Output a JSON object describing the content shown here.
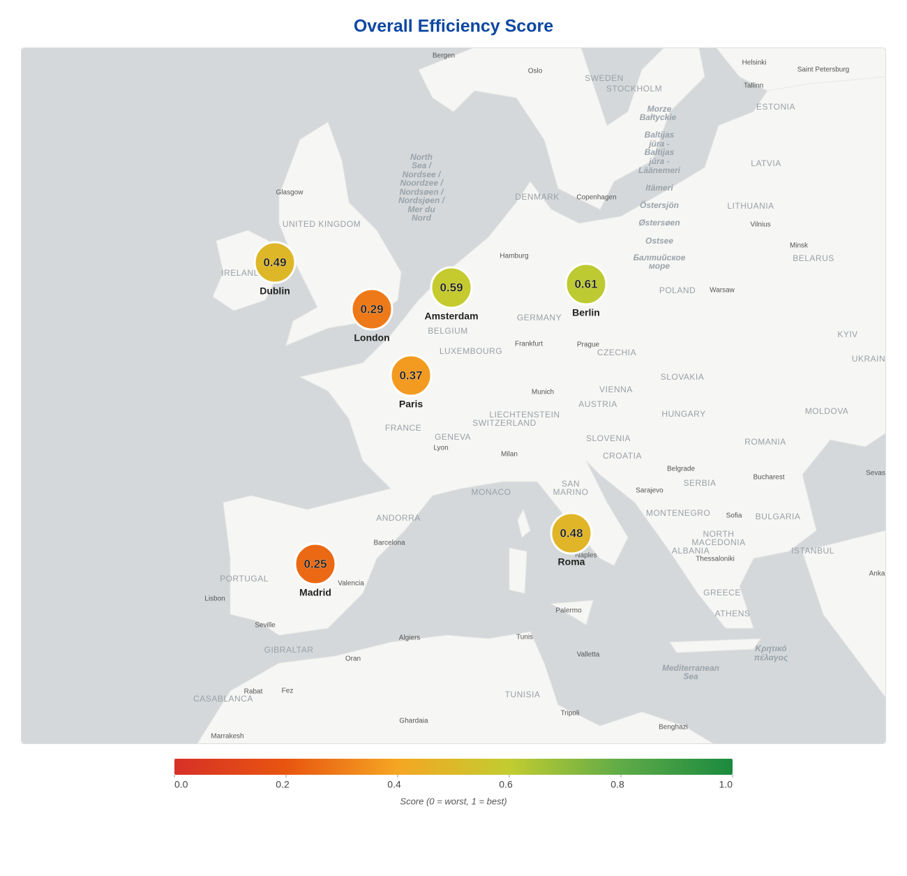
{
  "title": "Overall Efficiency Score",
  "markers": {
    "type": "bubble-map",
    "cities": [
      "Dublin",
      "London",
      "Amsterdam",
      "Berlin",
      "Paris",
      "Roma",
      "Madrid"
    ],
    "values": [
      0.49,
      0.29,
      0.59,
      0.61,
      0.37,
      0.48,
      0.25
    ]
  },
  "colorbar": {
    "colorscale": [
      "#d73027",
      "#e8550f",
      "#f5a623",
      "#c2cc30",
      "#5fab48",
      "#1a8a3e"
    ],
    "lim": [
      0,
      1
    ],
    "ticks": [
      {
        "value": 0,
        "label": "0.0"
      },
      0.2,
      0.4,
      0.6,
      0.8,
      {
        "value": 1,
        "label": "1.0"
      }
    ],
    "caption": "Score (0 = worst, 1 = best)"
  },
  "map_labels": [
    "Bergen",
    "Oslo",
    "SWEDEN",
    "STOCKHOLM",
    "Helsinki",
    "Saint Petersburg",
    "Tallinn",
    "ESTONIA",
    "LATVIA",
    "LITHUANIA",
    "Vilnius",
    "Minsk",
    "BELARUS",
    "Glasgow",
    "UNITED KINGDOM",
    "IRELAND",
    "DENMARK",
    "Copenhagen",
    "Hamburg",
    "POLAND",
    "Warsaw",
    "GERMANY",
    "BELGIUM",
    "LUXEMBOURG",
    "Frankfurt",
    "Prague",
    "CZECHIA",
    "KYIV",
    "UKRAIN",
    "SLOVAKIA",
    "Munich",
    "VIENNA",
    "AUSTRIA",
    "HUNGARY",
    "MOLDOVA",
    "LIECHTENSTEIN",
    "SWITZERLAND",
    "FRANCE",
    "GENEVA",
    "Lyon",
    "Milan",
    "SLOVENIA",
    "CROATIA",
    "ROMANIA",
    "Belgrade",
    "Bucharest",
    "SERBIA",
    "SAN",
    "MARINO",
    "MONACO",
    "Sarajevo",
    "MONTENEGRO",
    "Sofia",
    "BULGARIA",
    "ANDORRA",
    "NORTH",
    "MACEDONIA",
    "ALBANIA",
    "Thessaloniki",
    "ISTANBUL",
    "Barcelona",
    "PORTUGAL",
    "Valencia",
    "Lisbon",
    "Naples",
    "GREECE",
    "ATHENS",
    "Palermo",
    "Seville",
    "Algiers",
    "Tunis",
    "GIBRALTAR",
    "Oran",
    "Valletta",
    "TUNISIA",
    "Rabat",
    "Fez",
    "CASABLANCA",
    "Tripoli",
    "Ghardaia",
    "Benghazi",
    "Marrakesh",
    "Sevas",
    "Anka",
    "North",
    "Sea /",
    "Nordsee /",
    "Noordzee /",
    "Nordsøen /",
    "Nordsjøen /",
    "Mer du",
    "Nord",
    "Morze",
    "Bałtyckie",
    "Baltijas",
    "jūra -",
    "Baltijas",
    "jūra -",
    "Läänemeri",
    "Itämeri",
    "Östersjön",
    "Østersøen",
    "Ostsee",
    "Балтийское",
    "море",
    "Mediterranean",
    "Sea",
    "Κρητικό",
    "πέλαγος"
  ]
}
